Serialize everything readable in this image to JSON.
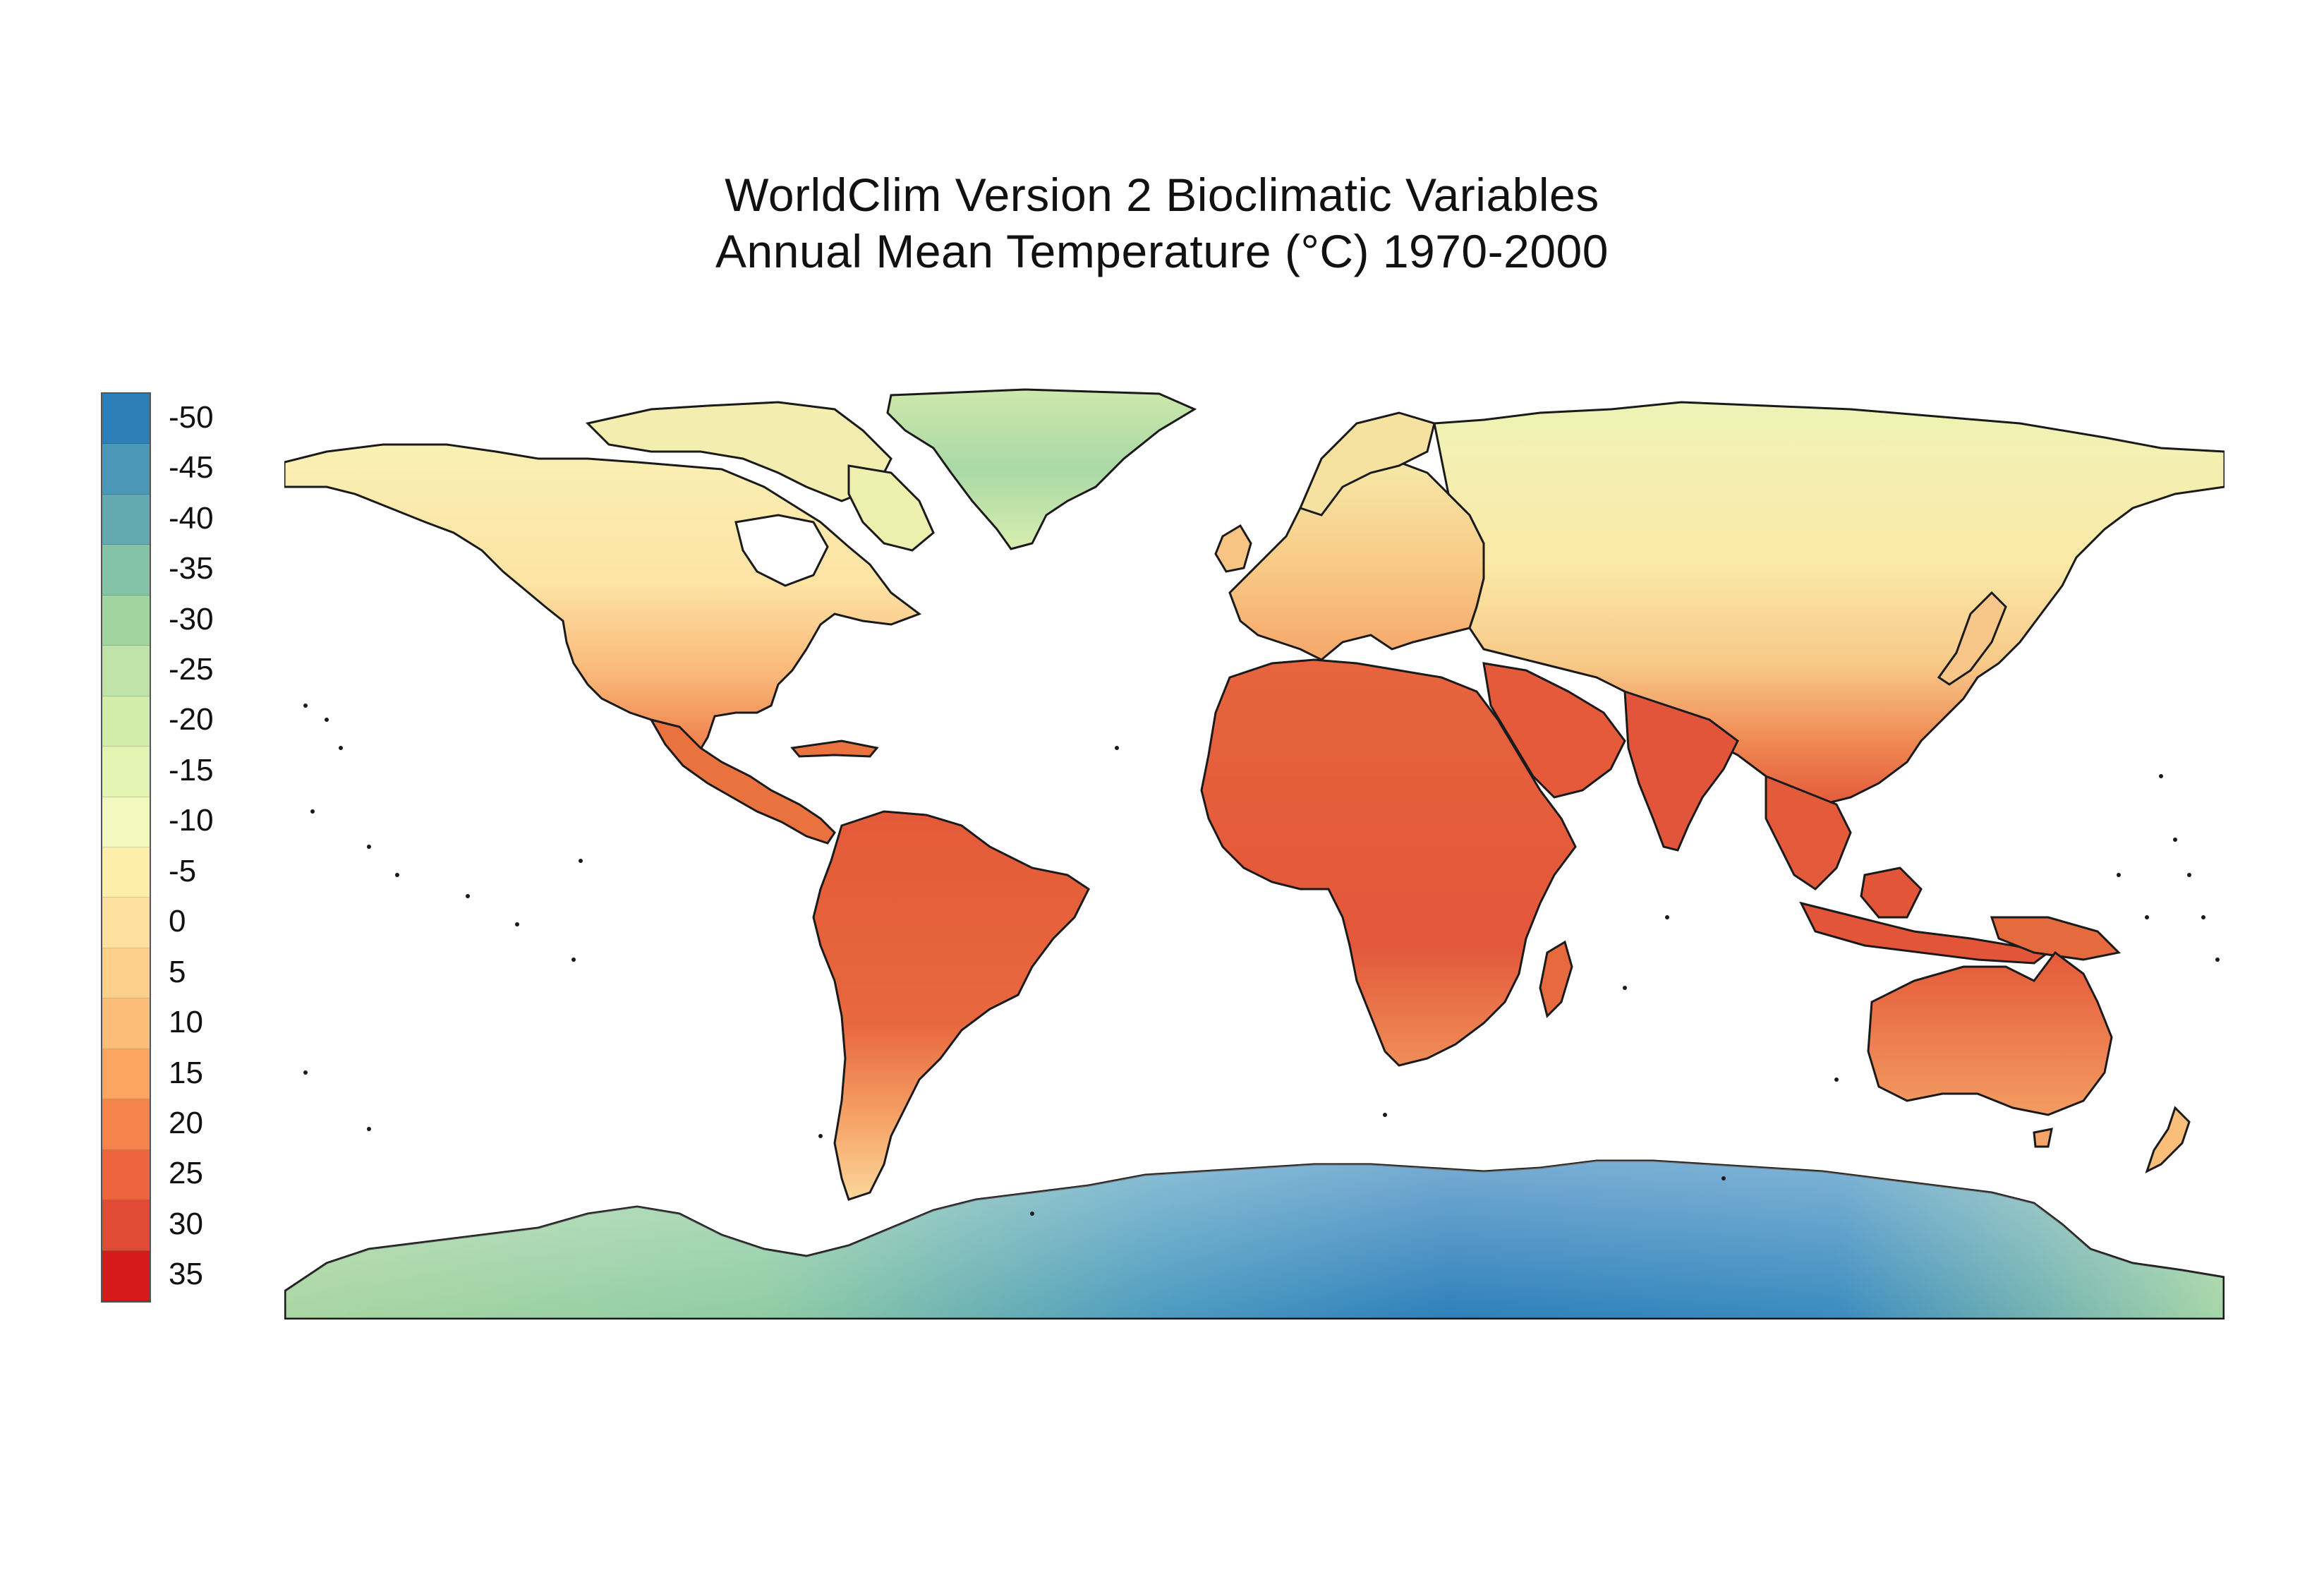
{
  "title": {
    "line1": "WorldClim Version 2 Bioclimatic Variables",
    "line2": "Annual Mean Temperature (°C) 1970-2000"
  },
  "legend": {
    "labels": [
      "-50",
      "-45",
      "-40",
      "-35",
      "-30",
      "-25",
      "-20",
      "-15",
      "-10",
      "-5",
      "0",
      "5",
      "10",
      "15",
      "20",
      "25",
      "30",
      "35"
    ],
    "colors": [
      "#2c7fb8",
      "#4a97b8",
      "#64a8b0",
      "#85c3a8",
      "#a2d4a0",
      "#bfe3a8",
      "#d2edaa",
      "#e3f4b2",
      "#f3f8c0",
      "#fdefa9",
      "#fee09e",
      "#fdd18c",
      "#fcbd78",
      "#fba563",
      "#f5844c",
      "#ec653f",
      "#e14a34",
      "#d7191c"
    ]
  },
  "map": {
    "region_colors": {
      "north_america_north": "#f8eca8",
      "north_america_south": "#f6a164",
      "central_america": "#e8703e",
      "south_america": "#e5603a",
      "patagonia": "#f9c98a",
      "greenland": "#bfe0a6",
      "europe": "#f8c484",
      "russia": "#eef2b4",
      "asia_central": "#f8d794",
      "africa": "#e3553a",
      "south_asia": "#e25a3a",
      "australia": "#e9683f",
      "antarctica_coast": "#a6d8a4",
      "antarctica_interior": "#2f81bd",
      "border": "#1a1a1a"
    }
  }
}
